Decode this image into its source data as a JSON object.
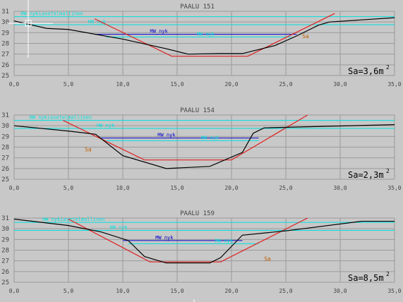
{
  "colors": {
    "background": "#c8c8c8",
    "grid": "#9a9a9a",
    "axis_text": "#444444",
    "hw_line": "#00e0e0",
    "nw_line": "#0000cc",
    "design_line": "#e02020",
    "terrain_line": "#000000",
    "sa_label": "#c06000"
  },
  "chart_data": [
    {
      "type": "line",
      "title": "PAALU 151",
      "xlim": [
        0,
        35
      ],
      "ylim": [
        25,
        31
      ],
      "xticks": [
        "0,0",
        "5,0",
        "10,0",
        "15,0",
        "20,0",
        "25,0",
        "30,0",
        "35,0"
      ],
      "yticks": [
        "25",
        "26",
        "27",
        "28",
        "29",
        "30",
        "31"
      ],
      "area_label": "Sa=3,6m",
      "area_exp": "2",
      "region_label": "Sa",
      "region_at": [
        26.5,
        28.5
      ],
      "levels": [
        {
          "label": "HW nykiasetelmallinen",
          "y": 30.5,
          "x0": 0,
          "x1": 35,
          "label_x": 0.6,
          "color": "hw"
        },
        {
          "label": "HW_nyk",
          "y": 29.75,
          "x0": 0,
          "x1": 35,
          "label_x": 6.8,
          "color": "hw"
        },
        {
          "label": "MW_nyk",
          "y": 28.85,
          "x0": 7.4,
          "x1": 26.0,
          "label_x": 12.5,
          "color": "nw"
        },
        {
          "label": "MW_nyk",
          "y": 28.6,
          "x0": 8.5,
          "x1": 25.5,
          "label_x": 16.8,
          "color": "hw"
        }
      ],
      "terrain": {
        "x": [
          0,
          3,
          5,
          10,
          14,
          16,
          19,
          21,
          24,
          26,
          28,
          29,
          35
        ],
        "y": [
          30.1,
          29.4,
          29.3,
          28.4,
          27.5,
          27.0,
          27.05,
          27.05,
          27.8,
          28.7,
          29.7,
          30.0,
          30.4
        ]
      },
      "design": {
        "x": [
          7.4,
          14.5,
          21.5,
          29.5
        ],
        "y": [
          30.3,
          26.8,
          26.8,
          30.8
        ]
      }
    },
    {
      "type": "line",
      "title": "PAALU 154",
      "xlim": [
        0,
        35
      ],
      "ylim": [
        25,
        31
      ],
      "xticks": [
        "0,0",
        "5,0",
        "10,0",
        "15,0",
        "20,0",
        "25,0",
        "30,0",
        "35,0"
      ],
      "yticks": [
        "25",
        "26",
        "27",
        "28",
        "29",
        "30",
        "31"
      ],
      "area_label": "Sa=2,3m",
      "area_exp": "2",
      "region_label": "Sa",
      "region_at": [
        6.5,
        27.6
      ],
      "levels": [
        {
          "label": "HW nykiasetelmallinen",
          "y": 30.5,
          "x0": 0,
          "x1": 35,
          "label_x": 1.4,
          "color": "hw"
        },
        {
          "label": "HW_nyk",
          "y": 29.75,
          "x0": 0,
          "x1": 35,
          "label_x": 7.6,
          "color": "hw"
        },
        {
          "label": "MW_nyk",
          "y": 28.85,
          "x0": 8.0,
          "x1": 22.5,
          "label_x": 13.2,
          "color": "nw"
        },
        {
          "label": "MW_nyk",
          "y": 28.6,
          "x0": 8.5,
          "x1": 22.5,
          "label_x": 17.2,
          "color": "hw"
        }
      ],
      "terrain": {
        "x": [
          0,
          5,
          7.5,
          10,
          14,
          18,
          21,
          22,
          23,
          35
        ],
        "y": [
          30.0,
          29.5,
          29.2,
          27.2,
          26.0,
          26.2,
          27.5,
          29.3,
          29.8,
          30.1
        ]
      },
      "design": {
        "x": [
          4.5,
          12,
          20,
          27
        ],
        "y": [
          30.5,
          26.8,
          26.8,
          31.0
        ]
      }
    },
    {
      "type": "line",
      "title": "PAALU 159",
      "xlim": [
        0,
        35
      ],
      "ylim": [
        25,
        31
      ],
      "xticks": [
        "0,0",
        "5,0",
        "10,0",
        "15,0",
        "20,0",
        "25,0",
        "30,0",
        "35,0"
      ],
      "yticks": [
        "25",
        "26",
        "27",
        "28",
        "29",
        "30",
        "31"
      ],
      "area_label": "Sa=8,5m",
      "area_exp": "2",
      "region_label": "Sa",
      "region_at": [
        23.0,
        27.0
      ],
      "levels": [
        {
          "label": "HW nykiasetelmallinen",
          "y": 30.6,
          "x0": 0,
          "x1": 35,
          "label_x": 2.6,
          "color": "hw"
        },
        {
          "label": "HW_nyk",
          "y": 29.85,
          "x0": 0,
          "x1": 35,
          "label_x": 8.8,
          "color": "hw"
        },
        {
          "label": "MW_nyk",
          "y": 28.9,
          "x0": 10.0,
          "x1": 21.0,
          "label_x": 13.0,
          "color": "nw"
        },
        {
          "label": "MW_nyk",
          "y": 28.6,
          "x0": 10.5,
          "x1": 22.5,
          "label_x": 18.5,
          "color": "hw"
        }
      ],
      "terrain": {
        "x": [
          0,
          5,
          8,
          10.5,
          12,
          14,
          18,
          19,
          21,
          25,
          32,
          35
        ],
        "y": [
          30.9,
          30.3,
          29.7,
          28.9,
          27.4,
          26.8,
          26.8,
          27.3,
          29.4,
          29.8,
          30.7,
          30.7
        ]
      },
      "design": {
        "x": [
          5,
          12.5,
          19,
          27
        ],
        "y": [
          30.9,
          26.9,
          26.9,
          31.0
        ]
      }
    }
  ]
}
